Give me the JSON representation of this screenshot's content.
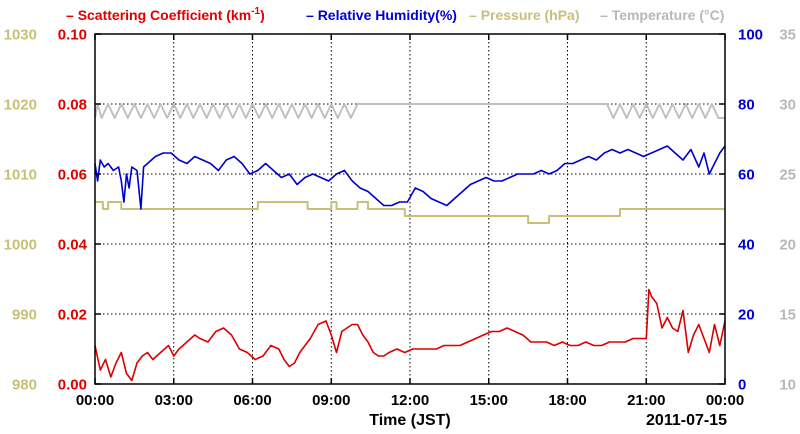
{
  "chart_data": {
    "type": "line",
    "xlabel": "Time (JST)",
    "date_label": "2011-07-15",
    "x_ticks": [
      "00:00",
      "03:00",
      "06:00",
      "09:00",
      "12:00",
      "15:00",
      "18:00",
      "21:00",
      "00:00"
    ],
    "x_range_hours": [
      0,
      24
    ],
    "grid": true,
    "legend": {
      "placement": "top",
      "items": [
        {
          "key": "scattering",
          "label_main": "Scattering Coefficient (km",
          "label_sup": "-1",
          "label_end": ")"
        },
        {
          "key": "humidity",
          "label_main": "Relative Humidity(%)",
          "label_sup": "",
          "label_end": ""
        },
        {
          "key": "pressure",
          "label_main": "Pressure (hPa)",
          "label_sup": "",
          "label_end": ""
        },
        {
          "key": "temperature",
          "label_main": "Temperature (°C)",
          "label_sup": "",
          "label_end": ""
        }
      ]
    },
    "axes": {
      "pressure": {
        "position": "left-outer",
        "range": [
          980,
          1030
        ],
        "ticks": [
          "980",
          "990",
          "1000",
          "1010",
          "1020",
          "1030"
        ],
        "color": "#c8bf78"
      },
      "scattering": {
        "position": "left-inner",
        "range": [
          0,
          0.1
        ],
        "ticks": [
          "0.00",
          "0.02",
          "0.04",
          "0.06",
          "0.08",
          "0.10"
        ],
        "color": "#e00000"
      },
      "humidity": {
        "position": "right-inner",
        "range": [
          0,
          100
        ],
        "ticks": [
          "0",
          "20",
          "40",
          "60",
          "80",
          "100"
        ],
        "color": "#0000d0"
      },
      "temperature": {
        "position": "right-outer",
        "range": [
          10,
          35
        ],
        "ticks": [
          "10",
          "15",
          "20",
          "25",
          "30",
          "35"
        ],
        "color": "#b8b8b8"
      }
    },
    "series": [
      {
        "key": "temperature",
        "name": "Temperature (°C)",
        "color": "#c0c0c0",
        "axis": "temperature",
        "x": [
          0.0,
          0.1,
          0.25,
          0.5,
          0.75,
          1.0,
          1.25,
          1.5,
          1.75,
          2.0,
          2.25,
          2.5,
          2.75,
          3.0,
          3.25,
          3.5,
          3.75,
          4.0,
          4.25,
          4.5,
          4.75,
          5.0,
          5.25,
          5.5,
          5.75,
          6.0,
          6.25,
          6.5,
          6.75,
          7.0,
          7.25,
          7.5,
          7.75,
          8.0,
          8.25,
          8.5,
          8.75,
          9.0,
          9.25,
          9.5,
          9.75,
          10.0,
          10.5,
          11.0,
          11.5,
          12.0,
          12.5,
          13.0,
          13.5,
          14.0,
          14.5,
          15.0,
          15.5,
          16.0,
          16.5,
          17.0,
          17.5,
          18.0,
          18.5,
          19.0,
          19.5,
          19.75,
          20.0,
          20.25,
          20.5,
          20.75,
          21.0,
          21.25,
          21.5,
          21.75,
          22.0,
          22.25,
          22.5,
          22.75,
          23.0,
          23.25,
          23.5,
          23.75,
          24.0
        ],
        "y": [
          29.0,
          30.0,
          29.0,
          30.0,
          29.0,
          30.0,
          29.0,
          30.0,
          29.0,
          30.0,
          29.0,
          30.0,
          29.0,
          30.0,
          29.0,
          30.0,
          29.0,
          30.0,
          29.0,
          30.0,
          29.0,
          30.0,
          29.0,
          30.0,
          29.0,
          30.0,
          29.0,
          30.0,
          29.0,
          30.0,
          29.0,
          30.0,
          29.0,
          30.0,
          29.0,
          30.0,
          29.0,
          30.0,
          29.0,
          30.0,
          29.0,
          30.0,
          30.0,
          30.0,
          30.0,
          30.0,
          30.0,
          30.0,
          30.0,
          30.0,
          30.0,
          30.0,
          30.0,
          30.0,
          30.0,
          30.0,
          30.0,
          30.0,
          30.0,
          30.0,
          30.0,
          29.0,
          30.0,
          29.0,
          30.0,
          29.0,
          30.0,
          29.0,
          30.0,
          29.0,
          30.0,
          29.0,
          30.0,
          29.0,
          30.0,
          29.0,
          30.0,
          29.0,
          29.0
        ]
      },
      {
        "key": "pressure",
        "name": "Pressure (hPa)",
        "color": "#c8bf78",
        "axis": "pressure",
        "x": [
          0.0,
          0.3,
          0.3,
          0.5,
          0.5,
          1.0,
          1.0,
          1.8,
          1.8,
          6.2,
          6.2,
          8.1,
          8.1,
          8.6,
          8.6,
          9.0,
          9.0,
          9.2,
          9.2,
          9.5,
          9.5,
          10.0,
          10.0,
          10.4,
          10.4,
          11.8,
          11.8,
          16.5,
          16.5,
          17.3,
          17.3,
          17.8,
          17.8,
          20.0,
          20.0,
          24.0
        ],
        "y": [
          1006.0,
          1006.0,
          1005.0,
          1005.0,
          1006.0,
          1006.0,
          1005.0,
          1005.0,
          1005.0,
          1005.0,
          1006.0,
          1006.0,
          1005.0,
          1005.0,
          1005.0,
          1005.0,
          1006.0,
          1006.0,
          1005.0,
          1005.0,
          1005.0,
          1005.0,
          1006.0,
          1006.0,
          1005.0,
          1005.0,
          1004.0,
          1004.0,
          1003.0,
          1003.0,
          1004.0,
          1004.0,
          1004.0,
          1004.0,
          1005.0,
          1005.0
        ]
      },
      {
        "key": "humidity",
        "name": "Relative Humidity(%)",
        "color": "#0000cc",
        "axis": "humidity",
        "x": [
          0.0,
          0.1,
          0.2,
          0.35,
          0.5,
          0.7,
          0.9,
          1.0,
          1.1,
          1.2,
          1.3,
          1.4,
          1.6,
          1.75,
          1.85,
          2.0,
          2.3,
          2.6,
          2.9,
          3.2,
          3.5,
          3.8,
          4.1,
          4.4,
          4.7,
          5.0,
          5.3,
          5.6,
          5.9,
          6.2,
          6.5,
          6.8,
          7.1,
          7.4,
          7.7,
          8.0,
          8.3,
          8.6,
          8.9,
          9.2,
          9.5,
          9.8,
          10.1,
          10.4,
          10.7,
          11.0,
          11.3,
          11.6,
          11.9,
          12.2,
          12.5,
          12.8,
          13.1,
          13.4,
          13.7,
          14.0,
          14.3,
          14.6,
          14.9,
          15.2,
          15.5,
          15.8,
          16.1,
          16.4,
          16.7,
          17.0,
          17.3,
          17.6,
          17.9,
          18.2,
          18.5,
          18.8,
          19.1,
          19.4,
          19.7,
          20.0,
          20.3,
          20.6,
          20.9,
          21.2,
          21.5,
          21.8,
          22.1,
          22.4,
          22.7,
          23.0,
          23.2,
          23.4,
          23.6,
          23.8,
          24.0
        ],
        "y": [
          63,
          58,
          64,
          62,
          63,
          61,
          62,
          58,
          52,
          60,
          56,
          62,
          61,
          50,
          62,
          63,
          65,
          66,
          66,
          64,
          63,
          65,
          64,
          63,
          61,
          64,
          65,
          63,
          60,
          61,
          63,
          61,
          59,
          60,
          57,
          59,
          60,
          59,
          58,
          60,
          61,
          58,
          56,
          55,
          53,
          51,
          51,
          52,
          52,
          56,
          55,
          53,
          52,
          51,
          53,
          55,
          57,
          58,
          59,
          58,
          58,
          59,
          60,
          60,
          60,
          61,
          60,
          61,
          63,
          63,
          64,
          65,
          64,
          66,
          67,
          66,
          67,
          66,
          65,
          66,
          67,
          68,
          66,
          64,
          67,
          62,
          66,
          60,
          63,
          66,
          68
        ]
      },
      {
        "key": "scattering",
        "name": "Scattering Coefficient (km-1)",
        "color": "#dd0000",
        "axis": "scattering",
        "x": [
          0.0,
          0.2,
          0.4,
          0.6,
          0.8,
          1.0,
          1.2,
          1.4,
          1.6,
          1.8,
          2.0,
          2.2,
          2.5,
          2.8,
          3.0,
          3.2,
          3.5,
          3.8,
          4.0,
          4.3,
          4.6,
          4.9,
          5.2,
          5.5,
          5.8,
          6.1,
          6.4,
          6.7,
          7.0,
          7.2,
          7.4,
          7.6,
          7.8,
          8.0,
          8.2,
          8.5,
          8.8,
          9.0,
          9.2,
          9.4,
          9.6,
          9.8,
          10.0,
          10.2,
          10.4,
          10.6,
          10.8,
          11.0,
          11.2,
          11.5,
          11.8,
          12.1,
          12.4,
          12.7,
          13.0,
          13.3,
          13.6,
          13.9,
          14.2,
          14.5,
          14.8,
          15.1,
          15.4,
          15.7,
          16.0,
          16.3,
          16.6,
          16.9,
          17.2,
          17.5,
          17.8,
          18.1,
          18.4,
          18.7,
          19.0,
          19.3,
          19.6,
          19.9,
          20.2,
          20.5,
          20.8,
          21.0,
          21.1,
          21.2,
          21.4,
          21.6,
          21.8,
          22.0,
          22.2,
          22.4,
          22.6,
          22.8,
          23.0,
          23.2,
          23.4,
          23.6,
          23.8,
          24.0
        ],
        "y": [
          0.011,
          0.004,
          0.007,
          0.002,
          0.006,
          0.009,
          0.003,
          0.001,
          0.006,
          0.008,
          0.009,
          0.007,
          0.009,
          0.011,
          0.008,
          0.01,
          0.012,
          0.014,
          0.013,
          0.012,
          0.015,
          0.016,
          0.014,
          0.01,
          0.009,
          0.007,
          0.008,
          0.011,
          0.01,
          0.007,
          0.005,
          0.006,
          0.009,
          0.011,
          0.013,
          0.017,
          0.018,
          0.014,
          0.009,
          0.015,
          0.016,
          0.017,
          0.017,
          0.014,
          0.012,
          0.009,
          0.008,
          0.008,
          0.009,
          0.01,
          0.009,
          0.01,
          0.01,
          0.01,
          0.01,
          0.011,
          0.011,
          0.011,
          0.012,
          0.013,
          0.014,
          0.015,
          0.015,
          0.016,
          0.015,
          0.014,
          0.012,
          0.012,
          0.012,
          0.011,
          0.012,
          0.011,
          0.011,
          0.012,
          0.011,
          0.011,
          0.012,
          0.012,
          0.012,
          0.013,
          0.013,
          0.013,
          0.027,
          0.025,
          0.023,
          0.016,
          0.019,
          0.016,
          0.015,
          0.021,
          0.009,
          0.014,
          0.017,
          0.013,
          0.009,
          0.017,
          0.011,
          0.018
        ]
      }
    ]
  }
}
